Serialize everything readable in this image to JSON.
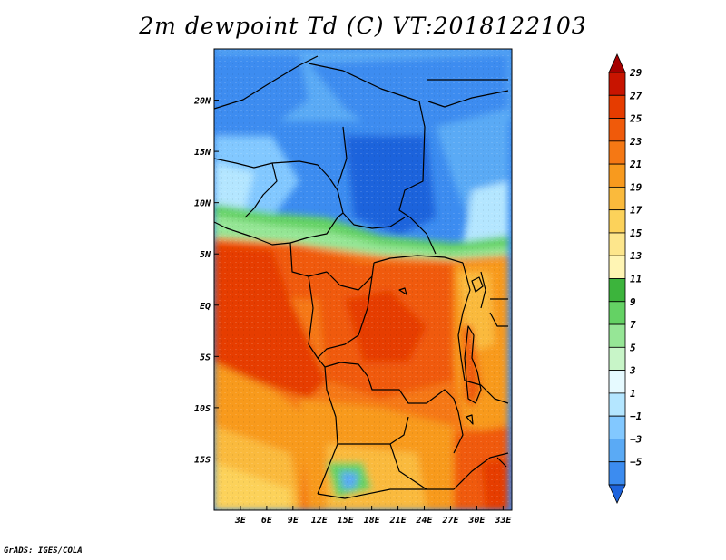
{
  "title": "2m dewpoint Td (C) VT:2018122103",
  "credit": "GrADS: IGES/COLA",
  "map": {
    "lon_range": [
      0,
      34
    ],
    "lat_range": [
      -20,
      25
    ],
    "lat_labels": [
      "20N",
      "15N",
      "10N",
      "5N",
      "EQ",
      "5S",
      "10S",
      "15S"
    ],
    "lat_values": [
      20,
      15,
      10,
      5,
      0,
      -5,
      -10,
      -15
    ],
    "lon_labels": [
      "3E",
      "6E",
      "9E",
      "12E",
      "15E",
      "18E",
      "21E",
      "24E",
      "27E",
      "30E",
      "33E"
    ],
    "lon_values": [
      3,
      6,
      9,
      12,
      15,
      18,
      21,
      24,
      27,
      30,
      33
    ]
  },
  "colorbar": {
    "labels": [
      "29",
      "27",
      "25",
      "23",
      "21",
      "19",
      "17",
      "15",
      "13",
      "11",
      "9",
      "7",
      "5",
      "3",
      "1",
      "−1",
      "−3",
      "−5"
    ],
    "colors": [
      "#a50000",
      "#c81400",
      "#e63c00",
      "#f05a0a",
      "#f57814",
      "#f89a1e",
      "#faba3c",
      "#fcd25a",
      "#fde68c",
      "#fff5b4",
      "#3cb43c",
      "#64d264",
      "#96e696",
      "#c8f5c8",
      "#e6faff",
      "#b4e6ff",
      "#82c8ff",
      "#5aaaf5",
      "#3c8cf0",
      "#1e64dc"
    ]
  }
}
